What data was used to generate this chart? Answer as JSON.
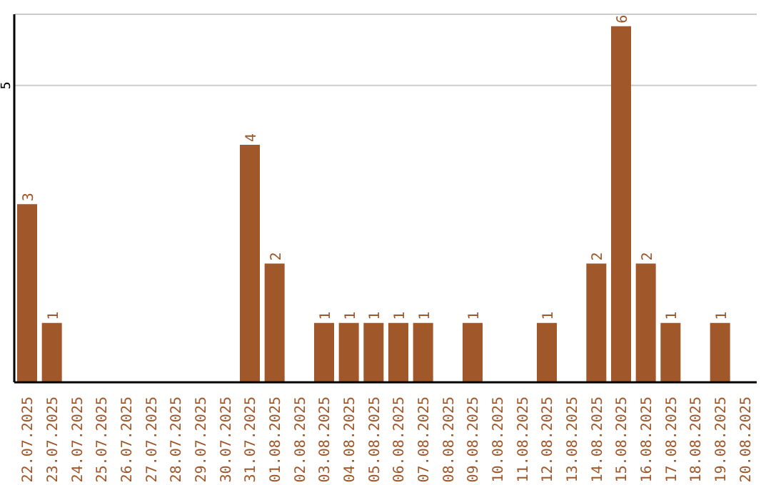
{
  "chart_data": {
    "type": "bar",
    "categories": [
      "22.07.2025",
      "23.07.2025",
      "24.07.2025",
      "25.07.2025",
      "26.07.2025",
      "27.07.2025",
      "28.07.2025",
      "29.07.2025",
      "30.07.2025",
      "31.07.2025",
      "01.08.2025",
      "02.08.2025",
      "03.08.2025",
      "04.08.2025",
      "05.08.2025",
      "06.08.2025",
      "07.08.2025",
      "08.08.2025",
      "09.08.2025",
      "10.08.2025",
      "11.08.2025",
      "12.08.2025",
      "13.08.2025",
      "14.08.2025",
      "15.08.2025",
      "16.08.2025",
      "17.08.2025",
      "18.08.2025",
      "19.08.2025",
      "20.08.2025"
    ],
    "values": [
      3,
      1,
      0,
      0,
      0,
      0,
      0,
      0,
      0,
      4,
      2,
      0,
      1,
      1,
      1,
      1,
      1,
      0,
      1,
      0,
      0,
      1,
      0,
      2,
      6,
      2,
      1,
      0,
      1,
      0
    ],
    "value_labels": [
      "3",
      "1",
      null,
      null,
      null,
      null,
      null,
      null,
      null,
      "4",
      "2",
      null,
      "1",
      "1",
      "1",
      "1",
      "1",
      null,
      "1",
      null,
      null,
      "1",
      null,
      "2",
      "6",
      "2",
      "1",
      null,
      "1",
      null
    ],
    "color": "#a0572a",
    "ylim": [
      0,
      6.2
    ],
    "yticks": [
      5
    ],
    "grid": "y",
    "legend": false
  }
}
